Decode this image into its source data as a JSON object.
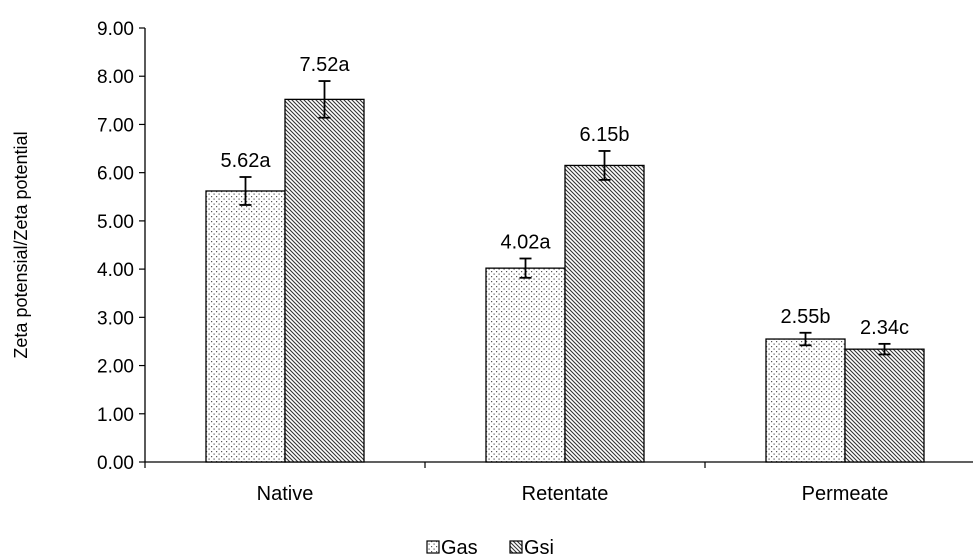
{
  "chart_data": {
    "type": "bar",
    "categories": [
      "Native",
      "Retentate",
      "Permeate"
    ],
    "series": [
      {
        "name": "Gas",
        "values": [
          5.62,
          4.02,
          2.55
        ],
        "errors": [
          0.29,
          0.2,
          0.13
        ],
        "labels": [
          "5.62a",
          "4.02a",
          "2.55b"
        ],
        "pattern": "dots"
      },
      {
        "name": "Gsi",
        "values": [
          7.52,
          6.15,
          2.34
        ],
        "errors": [
          0.38,
          0.3,
          0.11
        ],
        "labels": [
          "7.52a",
          "6.15b",
          "2.34c"
        ],
        "pattern": "diagonal-hatch"
      }
    ],
    "title": "",
    "xlabel": "",
    "ylabel": "Zeta potensial/Zeta potential",
    "ylim": [
      0,
      9
    ],
    "yticks": [
      "0.00",
      "1.00",
      "2.00",
      "3.00",
      "4.00",
      "5.00",
      "6.00",
      "7.00",
      "8.00",
      "9.00"
    ],
    "grid": false,
    "legend_position": "bottom"
  }
}
